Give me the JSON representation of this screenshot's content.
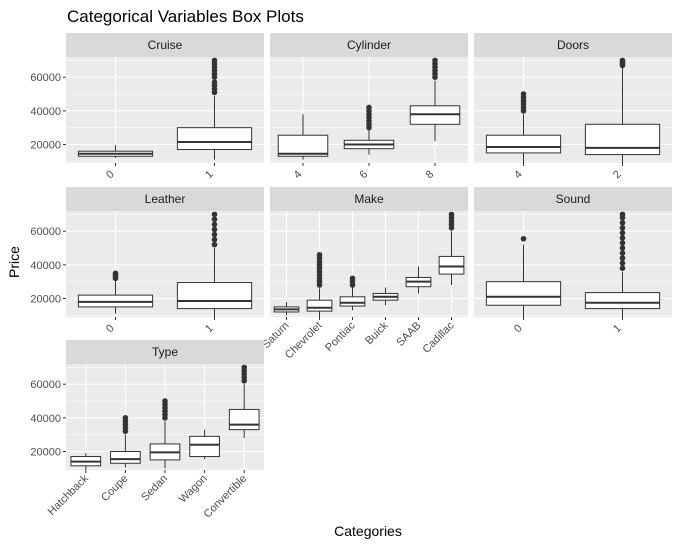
{
  "chart_data": {
    "type": "box",
    "title": "Categorical Variables Box Plots",
    "xlabel": "Categories",
    "ylabel": "Price",
    "ylim": [
      9000,
      72000
    ],
    "yticks": [
      20000,
      40000,
      60000
    ],
    "ytick_labels": [
      "20000",
      "40000",
      "60000"
    ],
    "grid": true,
    "panels": [
      {
        "name": "Cruise",
        "categories": [
          "0",
          "1"
        ],
        "boxes": [
          {
            "category": "0",
            "min": 12000,
            "q1": 13000,
            "median": 14500,
            "q3": 16000,
            "max": 19500,
            "outliers": []
          },
          {
            "category": "1",
            "min": 11000,
            "q1": 17000,
            "median": 21500,
            "q3": 30000,
            "max": 49000,
            "outliers": [
              51000,
              53000,
              55000,
              57000,
              60000,
              62000,
              64000,
              66000,
              68000,
              70000
            ]
          }
        ]
      },
      {
        "name": "Cylinder",
        "categories": [
          "4",
          "6",
          "8"
        ],
        "boxes": [
          {
            "category": "4",
            "min": 11000,
            "q1": 13000,
            "median": 14500,
            "q3": 25500,
            "max": 38000,
            "outliers": []
          },
          {
            "category": "6",
            "min": 14000,
            "q1": 17500,
            "median": 20000,
            "q3": 22500,
            "max": 29000,
            "outliers": [
              30000,
              32000,
              34000,
              36000,
              38000,
              40000,
              42000
            ]
          },
          {
            "category": "8",
            "min": 22000,
            "q1": 32000,
            "median": 38000,
            "q3": 43000,
            "max": 58000,
            "outliers": [
              60000,
              62000,
              64000,
              66000,
              68000,
              70000
            ]
          }
        ]
      },
      {
        "name": "Doors",
        "categories": [
          "4",
          "2"
        ],
        "boxes": [
          {
            "category": "4",
            "min": 9000,
            "q1": 15000,
            "median": 18500,
            "q3": 25500,
            "max": 38000,
            "outliers": [
              40000,
              42000,
              44000,
              46000,
              48000,
              50000
            ]
          },
          {
            "category": "2",
            "min": 9000,
            "q1": 14000,
            "median": 18000,
            "q3": 32000,
            "max": 66000,
            "outliers": [
              67000,
              68000,
              69000,
              70000
            ]
          }
        ]
      },
      {
        "name": "Leather",
        "categories": [
          "0",
          "1"
        ],
        "boxes": [
          {
            "category": "0",
            "min": 11000,
            "q1": 15000,
            "median": 18000,
            "q3": 22000,
            "max": 31000,
            "outliers": [
              32000,
              33000,
              34000,
              35000
            ]
          },
          {
            "category": "1",
            "min": 9000,
            "q1": 14000,
            "median": 18500,
            "q3": 29500,
            "max": 50000,
            "outliers": [
              52000,
              55000,
              58000,
              61000,
              64000,
              67000,
              70000
            ]
          }
        ]
      },
      {
        "name": "Make",
        "categories": [
          "Saturn",
          "Chevrolet",
          "Pontiac",
          "Buick",
          "SAAB",
          "Cadillac"
        ],
        "boxes": [
          {
            "category": "Saturn",
            "min": 10000,
            "q1": 12000,
            "median": 13500,
            "q3": 15000,
            "max": 18000,
            "outliers": []
          },
          {
            "category": "Chevrolet",
            "min": 9000,
            "q1": 12500,
            "median": 14500,
            "q3": 19000,
            "max": 26000,
            "outliers": [
              28000,
              30000,
              32000,
              34000,
              36000,
              38000,
              40000,
              42000,
              44000,
              46000
            ]
          },
          {
            "category": "Pontiac",
            "min": 13000,
            "q1": 15500,
            "median": 17500,
            "q3": 21000,
            "max": 27000,
            "outliers": [
              28000,
              30000,
              32000
            ]
          },
          {
            "category": "Buick",
            "min": 16000,
            "q1": 19000,
            "median": 21000,
            "q3": 23000,
            "max": 26500,
            "outliers": []
          },
          {
            "category": "SAAB",
            "min": 23000,
            "q1": 27000,
            "median": 30000,
            "q3": 32500,
            "max": 39000,
            "outliers": []
          },
          {
            "category": "Cadillac",
            "min": 28000,
            "q1": 34500,
            "median": 39000,
            "q3": 45000,
            "max": 60000,
            "outliers": [
              62000,
              64000,
              66000,
              68000,
              70000
            ]
          }
        ]
      },
      {
        "name": "Sound",
        "categories": [
          "0",
          "1"
        ],
        "boxes": [
          {
            "category": "0",
            "min": 9000,
            "q1": 16000,
            "median": 21000,
            "q3": 30000,
            "max": 52000,
            "outliers": [
              55500
            ]
          },
          {
            "category": "1",
            "min": 9000,
            "q1": 14000,
            "median": 17500,
            "q3": 23500,
            "max": 36000,
            "outliers": [
              38000,
              41000,
              44000,
              47000,
              50000,
              53000,
              56000,
              59000,
              62000,
              65000,
              68000,
              70000
            ]
          }
        ]
      },
      {
        "name": "Type",
        "categories": [
          "Hatchback",
          "Coupe",
          "Sedan",
          "Wagon",
          "Convertible"
        ],
        "boxes": [
          {
            "category": "Hatchback",
            "min": 9000,
            "q1": 11500,
            "median": 14000,
            "q3": 17000,
            "max": 19000,
            "outliers": []
          },
          {
            "category": "Coupe",
            "min": 10500,
            "q1": 13000,
            "median": 15500,
            "q3": 20000,
            "max": 30000,
            "outliers": [
              32000,
              34000,
              36000,
              38000,
              40000
            ]
          },
          {
            "category": "Sedan",
            "min": 10000,
            "q1": 15000,
            "median": 19500,
            "q3": 24500,
            "max": 38000,
            "outliers": [
              40000,
              42000,
              44000,
              46000,
              48000,
              50000
            ]
          },
          {
            "category": "Wagon",
            "min": 15500,
            "q1": 17000,
            "median": 24000,
            "q3": 29000,
            "max": 33000,
            "outliers": []
          },
          {
            "category": "Convertible",
            "min": 28000,
            "q1": 33000,
            "median": 36000,
            "q3": 45000,
            "max": 60000,
            "outliers": [
              62000,
              64000,
              66000,
              68000,
              70000
            ]
          }
        ]
      }
    ]
  },
  "colors": {
    "background": "#ffffff",
    "panel": "#ebebeb",
    "strip": "#d9d9d9",
    "grid_major": "#ffffff",
    "box_fill": "#ffffff",
    "box_line": "#333333",
    "outlier": "#333333",
    "tick_text": "#4d4d4d"
  }
}
